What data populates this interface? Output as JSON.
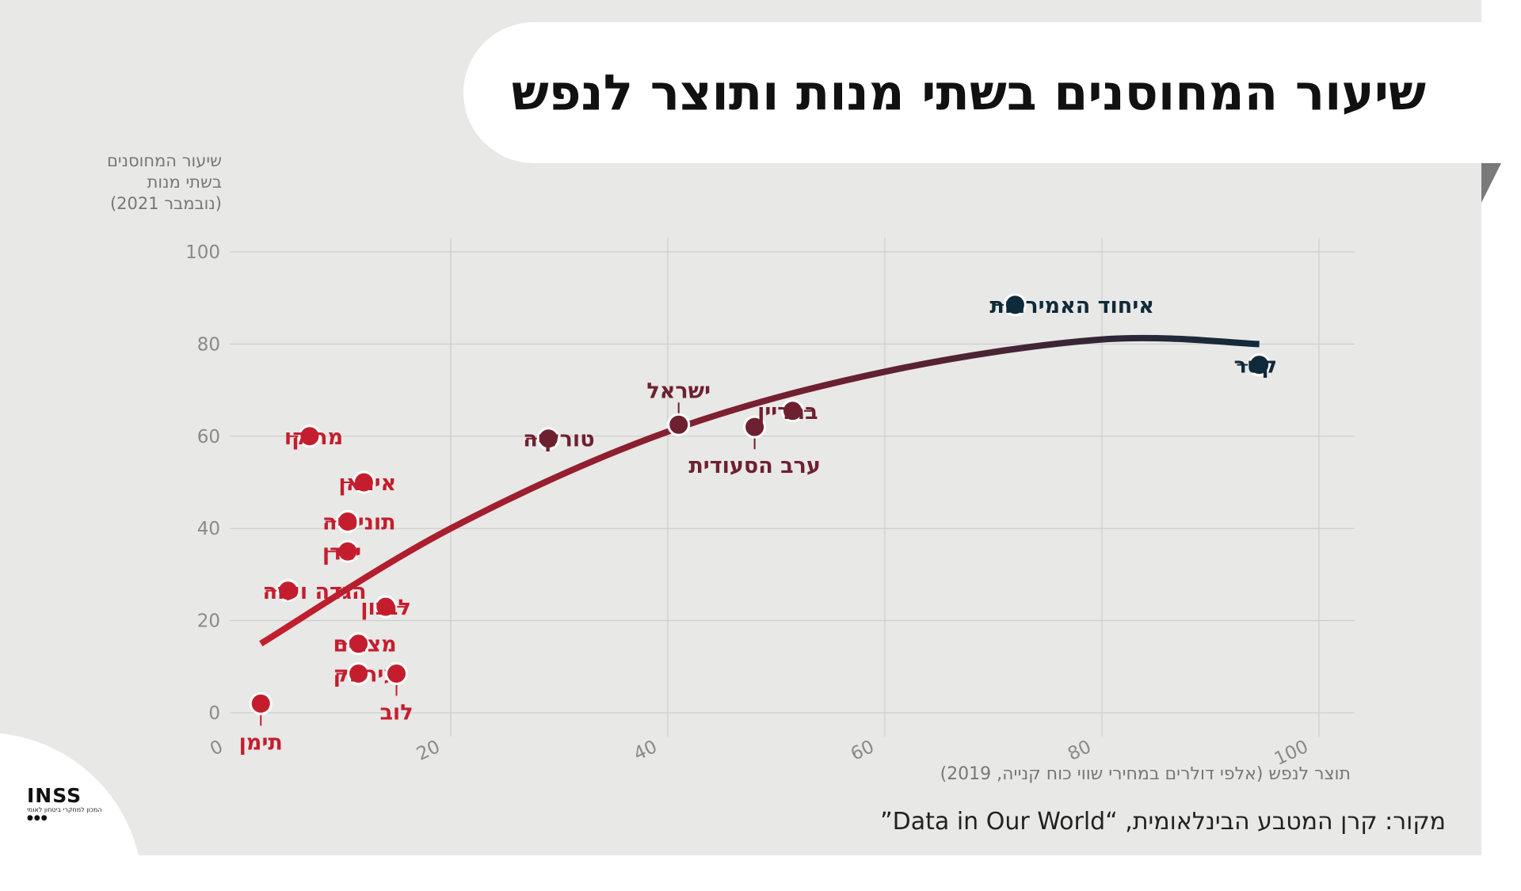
{
  "title": "שיעור המחוסנים בשתי מנות ותוצר לנפש",
  "y_axis_label": [
    "שיעור המחוסנים",
    "בשתי מנות",
    "(נובמבר 2021)"
  ],
  "x_axis_label": "תוצר לנפש (אלפי דולרים במחירי שווי כוח קנייה, 2019)",
  "source": "מקור: קרן המטבע הבינלאומית, “Data in Our World”",
  "logo": {
    "name": "INSS",
    "subtitle": "המכון למחקרי ביטחון לאומי"
  },
  "colors": {
    "low": "#c41e2e",
    "mid": "#6e2030",
    "high": "#0f2a3a",
    "grid": "#c9c9c9",
    "axis_text": "#8a8a8a"
  },
  "chart_data": {
    "type": "scatter",
    "xlim": [
      0,
      100
    ],
    "ylim": [
      0,
      100
    ],
    "x_ticks": [
      0,
      20,
      40,
      60,
      80,
      100
    ],
    "y_ticks": [
      0,
      20,
      40,
      60,
      80,
      100
    ],
    "grid": true,
    "points": [
      {
        "label": "תימן",
        "x": 2.5,
        "y": 2,
        "color": "#c41e2e"
      },
      {
        "label": "מרוקו",
        "x": 7,
        "y": 60,
        "color": "#c41e2e"
      },
      {
        "label": "איראן",
        "x": 12,
        "y": 50,
        "color": "#c41e2e"
      },
      {
        "label": "תוניסיה",
        "x": 10.5,
        "y": 41.5,
        "color": "#c41e2e"
      },
      {
        "label": "ירדן",
        "x": 10.5,
        "y": 35,
        "color": "#c41e2e"
      },
      {
        "label": "הגדה ועזה",
        "x": 5,
        "y": 26.5,
        "color": "#c41e2e"
      },
      {
        "label": "לבנון",
        "x": 14,
        "y": 23,
        "color": "#c41e2e"
      },
      {
        "label": "מצרים",
        "x": 11.5,
        "y": 15,
        "color": "#c41e2e"
      },
      {
        "label": "עיראק",
        "x": 11.5,
        "y": 8.5,
        "color": "#c41e2e"
      },
      {
        "label": "לוב",
        "x": 15,
        "y": 8.5,
        "color": "#c41e2e"
      },
      {
        "label": "טורקיה",
        "x": 29,
        "y": 59.5,
        "color": "#6e2030"
      },
      {
        "label": "ישראל",
        "x": 41,
        "y": 62.5,
        "color": "#6e2030"
      },
      {
        "label": "ערב הסעודית",
        "x": 48,
        "y": 62,
        "color": "#6e2030"
      },
      {
        "label": "בחריין",
        "x": 51.5,
        "y": 65.5,
        "color": "#6e2030"
      },
      {
        "label": "איחוד האמירויות",
        "x": 72,
        "y": 88.5,
        "color": "#0f2a3a"
      },
      {
        "label": "קטר",
        "x": 94.5,
        "y": 75.5,
        "color": "#0f2a3a"
      }
    ],
    "trend": {
      "type": "quadratic",
      "x": [
        2.5,
        20,
        40,
        60,
        80,
        94.5
      ],
      "y": [
        15,
        40,
        61,
        74,
        81,
        80
      ]
    }
  }
}
